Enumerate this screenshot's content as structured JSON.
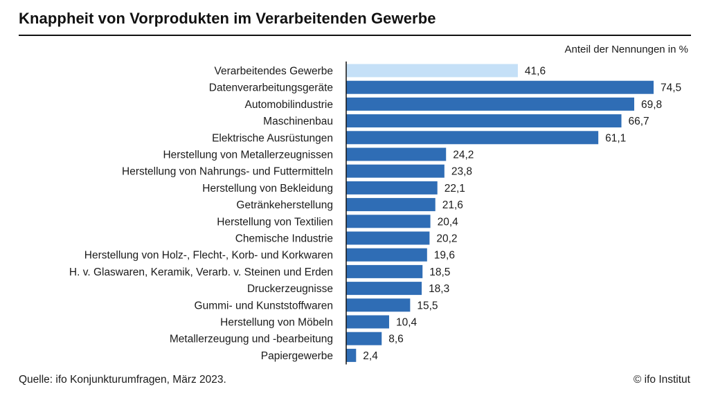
{
  "header": {
    "title": "Knappheit von Vorprodukten im Verarbeitenden Gewerbe"
  },
  "chart_data": {
    "type": "bar",
    "orientation": "horizontal",
    "unit_label": "Anteil der Nennungen in %",
    "categories": [
      "Verarbeitendes Gewerbe",
      "Datenverarbeitungsgeräte",
      "Automobilindustrie",
      "Maschinenbau",
      "Elektrische Ausrüstungen",
      "Herstellung von Metallerzeugnissen",
      "Herstellung von Nahrungs- und Futtermitteln",
      "Herstellung von Bekleidung",
      "Getränkeherstellung",
      "Herstellung von Textilien",
      "Chemische Industrie",
      "Herstellung von Holz-, Flecht-, Korb- und Korkwaren",
      "H. v. Glaswaren, Keramik, Verarb. v. Steinen und Erden",
      "Druckerzeugnisse ",
      "Gummi- und Kunststoffwaren",
      "Herstellung von Möbeln",
      "Metallerzeugung und -bearbeitung",
      "Papiergewerbe"
    ],
    "values": [
      41.6,
      74.5,
      69.8,
      66.7,
      61.1,
      24.2,
      23.8,
      22.1,
      21.6,
      20.4,
      20.2,
      19.6,
      18.5,
      18.3,
      15.5,
      10.4,
      8.6,
      2.4
    ],
    "value_labels": [
      "41,6",
      "74,5",
      "69,8",
      "66,7",
      "61,1",
      "24,2",
      "23,8",
      "22,1",
      "21,6",
      "20,4",
      "20,2",
      "19,6",
      "18,5",
      "18,3",
      "15,5",
      "10,4",
      "8,6",
      "2,4"
    ],
    "xlim": [
      0,
      80
    ],
    "grid": false,
    "colors": {
      "highlight": "#c5e0f7",
      "default": "#2f6db5"
    },
    "highlight_index": 0
  },
  "footer": {
    "source": "Quelle: ifo Konjunkturumfragen, März 2023.",
    "copyright": "© ifo Institut"
  }
}
